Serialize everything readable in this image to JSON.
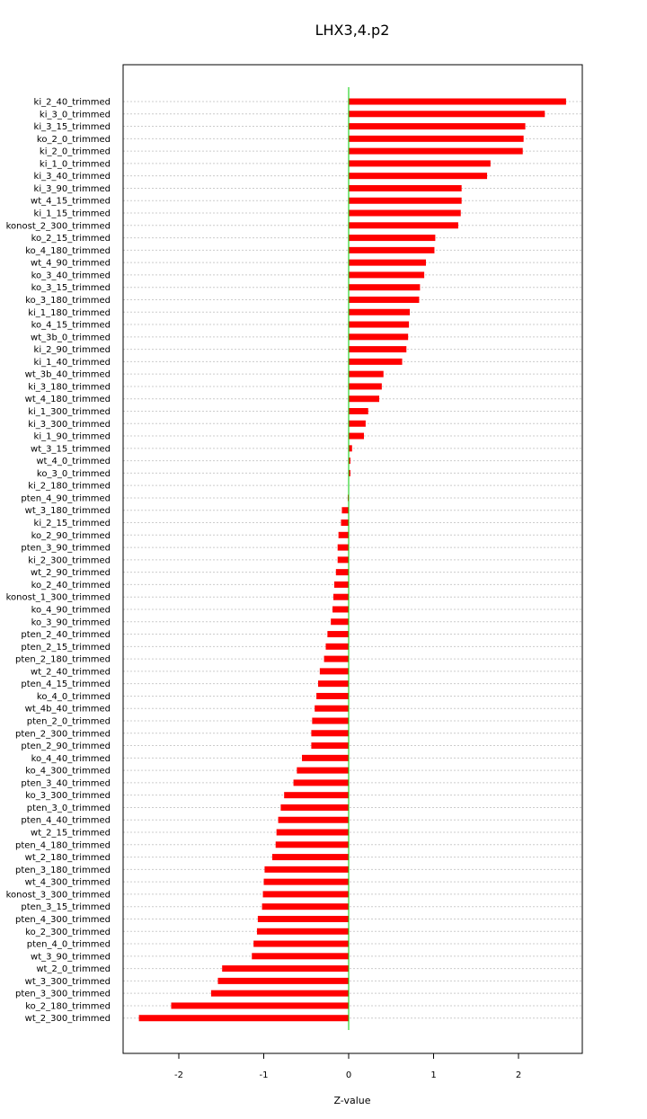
{
  "chart_data": {
    "type": "bar",
    "orientation": "horizontal",
    "title": "LHX3,4.p2",
    "xlabel": "Z-value",
    "ylabel": "",
    "xlim": [
      -2.7,
      2.8
    ],
    "xticks": [
      -2,
      -1,
      0,
      1,
      2
    ],
    "grid": true,
    "bar_color": "#ff0000",
    "zero_line_color": "#00cc00",
    "categories": [
      "ki_2_40_trimmed",
      "ki_3_0_trimmed",
      "ki_3_15_trimmed",
      "ko_2_0_trimmed",
      "ki_2_0_trimmed",
      "ki_1_0_trimmed",
      "ki_3_40_trimmed",
      "ki_3_90_trimmed",
      "wt_4_15_trimmed",
      "ki_1_15_trimmed",
      "konost_2_300_trimmed",
      "ko_2_15_trimmed",
      "ko_4_180_trimmed",
      "wt_4_90_trimmed",
      "ko_3_40_trimmed",
      "ko_3_15_trimmed",
      "ko_3_180_trimmed",
      "ki_1_180_trimmed",
      "ko_4_15_trimmed",
      "wt_3b_0_trimmed",
      "ki_2_90_trimmed",
      "ki_1_40_trimmed",
      "wt_3b_40_trimmed",
      "ki_3_180_trimmed",
      "wt_4_180_trimmed",
      "ki_1_300_trimmed",
      "ki_3_300_trimmed",
      "ki_1_90_trimmed",
      "wt_3_15_trimmed",
      "wt_4_0_trimmed",
      "ko_3_0_trimmed",
      "ki_2_180_trimmed",
      "pten_4_90_trimmed",
      "wt_3_180_trimmed",
      "ki_2_15_trimmed",
      "ko_2_90_trimmed",
      "pten_3_90_trimmed",
      "ki_2_300_trimmed",
      "wt_2_90_trimmed",
      "ko_2_40_trimmed",
      "konost_1_300_trimmed",
      "ko_4_90_trimmed",
      "ko_3_90_trimmed",
      "pten_2_40_trimmed",
      "pten_2_15_trimmed",
      "pten_2_180_trimmed",
      "wt_2_40_trimmed",
      "pten_4_15_trimmed",
      "ko_4_0_trimmed",
      "wt_4b_40_trimmed",
      "pten_2_0_trimmed",
      "pten_2_300_trimmed",
      "pten_2_90_trimmed",
      "ko_4_40_trimmed",
      "ko_4_300_trimmed",
      "pten_3_40_trimmed",
      "ko_3_300_trimmed",
      "pten_3_0_trimmed",
      "pten_4_40_trimmed",
      "wt_2_15_trimmed",
      "pten_4_180_trimmed",
      "wt_2_180_trimmed",
      "pten_3_180_trimmed",
      "wt_4_300_trimmed",
      "konost_3_300_trimmed",
      "pten_3_15_trimmed",
      "pten_4_300_trimmed",
      "ko_2_300_trimmed",
      "pten_4_0_trimmed",
      "wt_3_90_trimmed",
      "wt_2_0_trimmed",
      "wt_3_300_trimmed",
      "pten_3_300_trimmed",
      "ko_2_180_trimmed",
      "wt_2_300_trimmed"
    ],
    "values": [
      2.56,
      2.31,
      2.08,
      2.06,
      2.05,
      1.67,
      1.63,
      1.33,
      1.33,
      1.32,
      1.29,
      1.02,
      1.01,
      0.91,
      0.89,
      0.84,
      0.83,
      0.72,
      0.71,
      0.7,
      0.68,
      0.63,
      0.41,
      0.39,
      0.36,
      0.23,
      0.2,
      0.18,
      0.04,
      0.02,
      0.02,
      0.0,
      -0.01,
      -0.08,
      -0.09,
      -0.12,
      -0.13,
      -0.13,
      -0.15,
      -0.17,
      -0.18,
      -0.19,
      -0.21,
      -0.25,
      -0.27,
      -0.29,
      -0.34,
      -0.36,
      -0.38,
      -0.4,
      -0.43,
      -0.44,
      -0.44,
      -0.55,
      -0.61,
      -0.65,
      -0.76,
      -0.8,
      -0.83,
      -0.85,
      -0.86,
      -0.9,
      -0.99,
      -1.0,
      -1.01,
      -1.02,
      -1.07,
      -1.08,
      -1.12,
      -1.14,
      -1.49,
      -1.54,
      -1.62,
      -2.09,
      -2.47
    ]
  }
}
